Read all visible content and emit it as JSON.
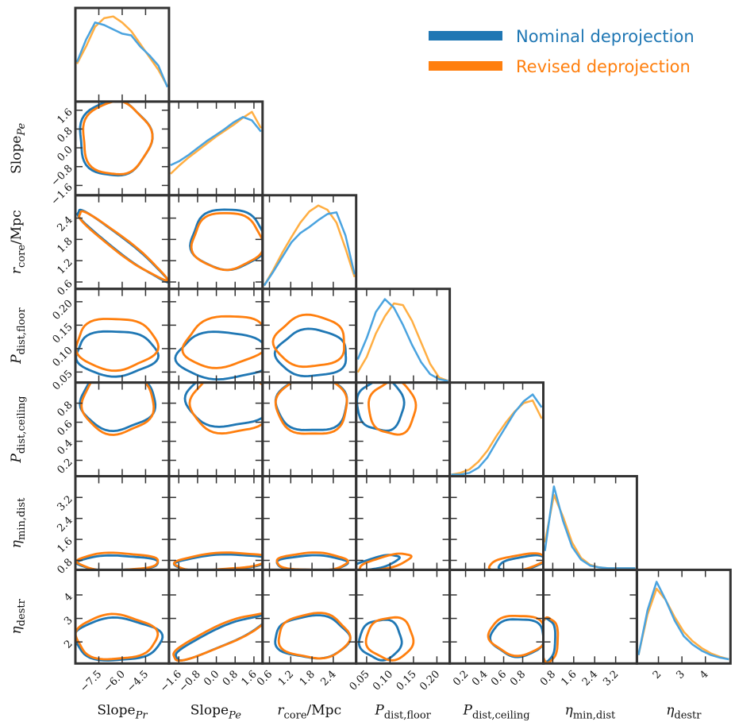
{
  "chart_data": {
    "type": "corner",
    "colors": {
      "nominal": "#1f77b4",
      "nominal_light": "#4aa3df",
      "revised": "#ff7f0e",
      "revised_light": "#ffae42",
      "frame": "#333333"
    },
    "legend": {
      "placement": "top-right",
      "entries": [
        {
          "name": "Nominal deprojection",
          "color": "#1f77b4"
        },
        {
          "name": "Revised deprojection",
          "color": "#ff7f0e"
        }
      ]
    },
    "params": [
      {
        "main": "Slope",
        "sub": "Pr",
        "suffix": "",
        "range": [
          -8.9,
          -3.1
        ],
        "ticks": [
          -7.5,
          -6.0,
          -4.5
        ],
        "tick_labels": [
          "−7.5",
          "−6.0",
          "−4.5"
        ]
      },
      {
        "main": "Slope",
        "sub": "Pe",
        "suffix": "",
        "range": [
          -1.95,
          1.9
        ],
        "ticks": [
          -1.6,
          -0.8,
          0.0,
          0.8,
          1.6
        ],
        "tick_labels": [
          "−1.6",
          "−0.8",
          "0.0",
          "0.8",
          "1.6"
        ]
      },
      {
        "main": "r",
        "sub": "core",
        "suffix": "/Mpc",
        "range": [
          0.45,
          3.0
        ],
        "ticks": [
          0.6,
          1.2,
          1.8,
          2.4
        ],
        "tick_labels": [
          "0.6",
          "1.2",
          "1.8",
          "2.4"
        ]
      },
      {
        "main": "P",
        "sub": "dist,floor",
        "suffix": "",
        "range": [
          0.031,
          0.224
        ],
        "ticks": [
          0.05,
          0.1,
          0.15,
          0.2
        ],
        "tick_labels": [
          "0.05",
          "0.10",
          "0.15",
          "0.20"
        ]
      },
      {
        "main": "P",
        "sub": "dist,ceiling",
        "suffix": "",
        "range": [
          0.05,
          1.0
        ],
        "ticks": [
          0.2,
          0.4,
          0.6,
          0.8
        ],
        "tick_labels": [
          "0.2",
          "0.4",
          "0.6",
          "0.8"
        ]
      },
      {
        "main": "η",
        "sub": "min,dist",
        "suffix": "",
        "range": [
          0.5,
          3.95
        ],
        "ticks": [
          0.8,
          1.6,
          2.4,
          3.2
        ],
        "tick_labels": [
          "0.8",
          "1.6",
          "2.4",
          "3.2"
        ]
      },
      {
        "main": "η",
        "sub": "destr",
        "suffix": "",
        "range": [
          1.15,
          5.0
        ],
        "ticks": [
          2,
          3,
          4
        ],
        "tick_labels": [
          "2",
          "3",
          "4"
        ]
      }
    ],
    "marginals": [
      {
        "nominal": [
          0.44,
          0.7,
          0.9,
          0.87,
          0.82,
          0.77,
          0.75,
          0.62,
          0.52,
          0.4,
          0.15
        ],
        "revised": [
          0.42,
          0.62,
          0.85,
          0.95,
          0.97,
          0.9,
          0.8,
          0.65,
          0.5,
          0.35,
          0.16
        ]
      },
      {
        "nominal": [
          0.33,
          0.38,
          0.45,
          0.53,
          0.61,
          0.68,
          0.75,
          0.83,
          0.89,
          0.85,
          0.72
        ],
        "revised": [
          0.23,
          0.33,
          0.42,
          0.5,
          0.58,
          0.66,
          0.73,
          0.8,
          0.88,
          0.95,
          0.76
        ]
      },
      {
        "nominal": [
          0.02,
          0.18,
          0.35,
          0.52,
          0.63,
          0.7,
          0.78,
          0.85,
          0.87,
          0.6,
          0.15
        ],
        "revised": [
          0.02,
          0.2,
          0.4,
          0.58,
          0.75,
          0.88,
          0.95,
          0.9,
          0.75,
          0.45,
          0.12
        ]
      },
      {
        "nominal": [
          0.25,
          0.5,
          0.8,
          0.95,
          0.85,
          0.65,
          0.42,
          0.22,
          0.08,
          0.02,
          0
        ],
        "revised": [
          0.1,
          0.28,
          0.55,
          0.75,
          0.9,
          0.88,
          0.7,
          0.45,
          0.2,
          0.04,
          0
        ]
      },
      {
        "nominal": [
          0,
          0,
          0.02,
          0.08,
          0.2,
          0.38,
          0.55,
          0.72,
          0.85,
          0.93,
          0.78
        ],
        "revised": [
          0,
          0.02,
          0.06,
          0.15,
          0.28,
          0.45,
          0.6,
          0.73,
          0.83,
          0.86,
          0.65
        ]
      },
      {
        "nominal": [
          0.2,
          0.95,
          0.55,
          0.25,
          0.1,
          0.03,
          0.01,
          0,
          0,
          0,
          0
        ],
        "revised": [
          0.3,
          0.85,
          0.6,
          0.3,
          0.12,
          0.04,
          0.01,
          0,
          0,
          0,
          0
        ]
      },
      {
        "nominal": [
          0.08,
          0.6,
          0.93,
          0.72,
          0.48,
          0.3,
          0.2,
          0.13,
          0.08,
          0.05,
          0.03
        ],
        "revised": [
          0.08,
          0.55,
          0.85,
          0.72,
          0.52,
          0.35,
          0.24,
          0.16,
          0.1,
          0.06,
          0.03
        ]
      }
    ],
    "contours": [
      {
        "row": 1,
        "col": 0,
        "nominal": [
          -6.5,
          0.4,
          2.3,
          1.6,
          0
        ],
        "revised": [
          -6.4,
          0.4,
          2.2,
          1.55,
          0
        ]
      },
      {
        "row": 2,
        "col": 0,
        "nominal": [
          -6.1,
          1.65,
          2.9,
          1.0,
          -0.97
        ],
        "revised": [
          -6.1,
          1.65,
          2.8,
          0.95,
          -0.96
        ]
      },
      {
        "row": 2,
        "col": 1,
        "nominal": [
          0.5,
          1.8,
          1.6,
          0.85,
          0
        ],
        "revised": [
          0.45,
          1.75,
          1.5,
          0.8,
          0
        ]
      },
      {
        "row": 3,
        "col": 0,
        "nominal": [
          -6.4,
          0.09,
          2.6,
          0.048,
          0
        ],
        "revised": [
          -6.4,
          0.11,
          2.6,
          0.055,
          0
        ]
      },
      {
        "row": 3,
        "col": 1,
        "nominal": [
          0.3,
          0.085,
          2.0,
          0.05,
          0
        ],
        "revised": [
          0.4,
          0.115,
          1.8,
          0.055,
          0.2
        ]
      },
      {
        "row": 3,
        "col": 2,
        "nominal": [
          1.8,
          0.09,
          1.0,
          0.05,
          0
        ],
        "revised": [
          1.75,
          0.115,
          1.0,
          0.055,
          0
        ]
      },
      {
        "row": 4,
        "col": 0,
        "nominal": [
          -6.3,
          0.82,
          2.4,
          0.3,
          0
        ],
        "revised": [
          -6.3,
          0.8,
          2.3,
          0.32,
          0
        ]
      },
      {
        "row": 4,
        "col": 1,
        "nominal": [
          0.5,
          0.85,
          1.8,
          0.3,
          0
        ],
        "revised": [
          0.6,
          0.8,
          1.7,
          0.32,
          0
        ]
      },
      {
        "row": 4,
        "col": 2,
        "nominal": [
          1.8,
          0.8,
          1.0,
          0.3,
          0
        ],
        "revised": [
          1.8,
          0.78,
          1.0,
          0.32,
          0
        ]
      },
      {
        "row": 4,
        "col": 3,
        "nominal": [
          0.08,
          0.78,
          0.05,
          0.27,
          0
        ],
        "revised": [
          0.105,
          0.75,
          0.05,
          0.28,
          0
        ]
      },
      {
        "row": 5,
        "col": 0,
        "nominal": [
          -6.3,
          0.7,
          2.6,
          0.28,
          0
        ],
        "revised": [
          -6.3,
          0.75,
          2.6,
          0.33,
          0
        ]
      },
      {
        "row": 5,
        "col": 1,
        "nominal": [
          0.2,
          0.72,
          2.0,
          0.3,
          0.3
        ],
        "revised": [
          0.2,
          0.76,
          2.0,
          0.33,
          0.3
        ]
      },
      {
        "row": 5,
        "col": 2,
        "nominal": [
          1.8,
          0.7,
          1.0,
          0.28,
          0
        ],
        "revised": [
          1.8,
          0.75,
          1.0,
          0.33,
          0
        ]
      },
      {
        "row": 5,
        "col": 3,
        "nominal": [
          0.07,
          0.7,
          0.05,
          0.3,
          0.7
        ],
        "revised": [
          0.09,
          0.72,
          0.055,
          0.33,
          0.7
        ]
      },
      {
        "row": 5,
        "col": 4,
        "nominal": [
          0.8,
          0.7,
          0.25,
          0.28,
          0.5
        ],
        "revised": [
          0.75,
          0.72,
          0.3,
          0.33,
          0.5
        ]
      },
      {
        "row": 6,
        "col": 0,
        "nominal": [
          -6.3,
          2.1,
          2.8,
          0.9,
          0
        ],
        "revised": [
          -6.4,
          2.2,
          2.6,
          0.95,
          0
        ]
      },
      {
        "row": 6,
        "col": 1,
        "nominal": [
          0.2,
          2.2,
          2.0,
          0.95,
          0.9
        ],
        "revised": [
          0.2,
          2.25,
          2.1,
          1.0,
          0.88
        ]
      },
      {
        "row": 6,
        "col": 2,
        "nominal": [
          1.8,
          2.2,
          1.05,
          0.9,
          0
        ],
        "revised": [
          1.85,
          2.25,
          1.0,
          0.95,
          0
        ]
      },
      {
        "row": 6,
        "col": 3,
        "nominal": [
          0.08,
          2.1,
          0.045,
          0.85,
          0
        ],
        "revised": [
          0.1,
          2.15,
          0.05,
          0.9,
          0
        ]
      },
      {
        "row": 6,
        "col": 4,
        "nominal": [
          0.75,
          2.2,
          0.28,
          0.8,
          0
        ],
        "revised": [
          0.75,
          2.3,
          0.3,
          0.85,
          0
        ]
      },
      {
        "row": 6,
        "col": 5,
        "nominal": [
          0.6,
          2.1,
          0.3,
          0.9,
          0
        ],
        "revised": [
          0.65,
          2.1,
          0.35,
          0.95,
          0
        ]
      }
    ]
  }
}
